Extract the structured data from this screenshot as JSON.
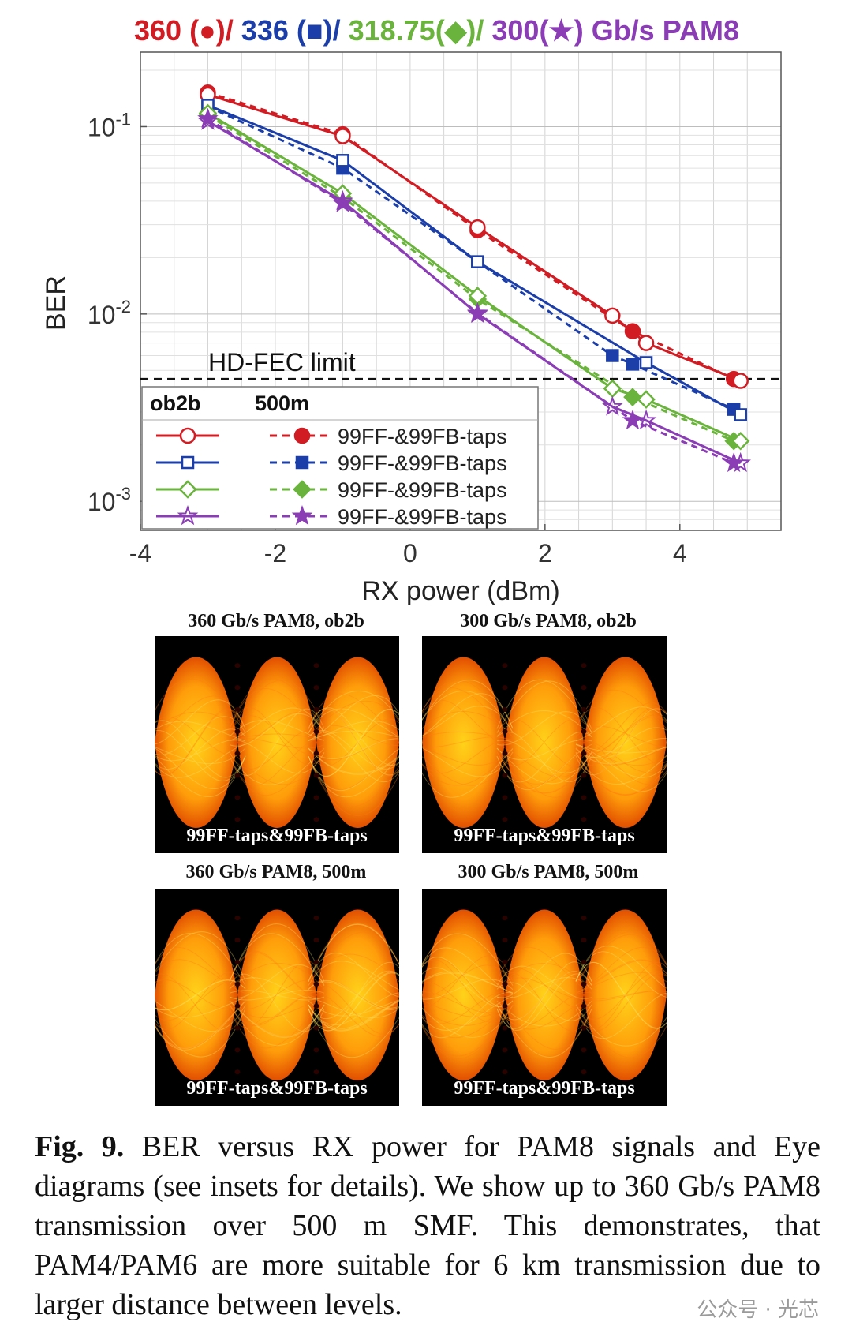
{
  "chart_data": {
    "type": "line",
    "title_parts": [
      {
        "text": "360 (●)/ ",
        "color": "#d01c22"
      },
      {
        "text": "336 (■)/ ",
        "color": "#1b3ea8"
      },
      {
        "text": "318.75(◆)/ ",
        "color": "#6ab33c"
      },
      {
        "text": "300(★) Gb/s PAM8",
        "color": "#8a3db4"
      }
    ],
    "xlabel": "RX power (dBm)",
    "ylabel": "BER",
    "xlim": [
      -4,
      5.5
    ],
    "xticks": [
      -4,
      -2,
      0,
      2,
      4
    ],
    "ylim": [
      0.0007,
      0.25
    ],
    "yscale": "log",
    "yticks": [
      {
        "value": 0.1,
        "base": "10",
        "exp": "-1"
      },
      {
        "value": 0.01,
        "base": "10",
        "exp": "-2"
      },
      {
        "value": 0.001,
        "base": "10",
        "exp": "-3"
      }
    ],
    "grid": true,
    "threshold": {
      "label": "HD-FEC limit",
      "value": 0.0045
    },
    "legend": {
      "headers": [
        "ob2b",
        "500m"
      ],
      "entries_label": "99FF-&99FB-taps",
      "placement": "lower-left"
    },
    "series": [
      {
        "color": "#d01c22",
        "marker": "circle",
        "ob2b": {
          "x": [
            -3,
            -1,
            1,
            3,
            3.5,
            4.9
          ],
          "y": [
            0.148,
            0.089,
            0.029,
            0.0098,
            0.007,
            0.0044
          ]
        },
        "km500": {
          "x": [
            -3,
            -1,
            1,
            3.3,
            4.8
          ],
          "y": [
            0.152,
            0.091,
            0.028,
            0.0081,
            0.0045
          ]
        }
      },
      {
        "color": "#1b3ea8",
        "marker": "square",
        "ob2b": {
          "x": [
            -3,
            -1,
            1,
            3.5,
            4.9
          ],
          "y": [
            0.13,
            0.066,
            0.019,
            0.0055,
            0.0029
          ]
        },
        "km500": {
          "x": [
            -3,
            -1,
            1,
            3,
            3.3,
            4.8
          ],
          "y": [
            0.128,
            0.06,
            0.019,
            0.006,
            0.0054,
            0.0031
          ]
        }
      },
      {
        "color": "#6ab33c",
        "marker": "diamond",
        "ob2b": {
          "x": [
            -3,
            -1,
            1,
            3,
            3.5,
            4.9
          ],
          "y": [
            0.118,
            0.044,
            0.0125,
            0.004,
            0.0035,
            0.0021
          ]
        },
        "km500": {
          "x": [
            -3,
            -1,
            1,
            3.3,
            4.8
          ],
          "y": [
            0.115,
            0.042,
            0.012,
            0.0036,
            0.0021
          ]
        }
      },
      {
        "color": "#8a3db4",
        "marker": "star",
        "ob2b": {
          "x": [
            -3,
            -1,
            1,
            3,
            3.5,
            4.9
          ],
          "y": [
            0.107,
            0.04,
            0.01,
            0.0032,
            0.0027,
            0.0016
          ]
        },
        "km500": {
          "x": [
            -3,
            -1,
            1,
            3.3,
            4.8
          ],
          "y": [
            0.11,
            0.039,
            0.0101,
            0.0027,
            0.0016
          ]
        }
      }
    ]
  },
  "eye_diagrams": [
    {
      "title": "360 Gb/s PAM8, ob2b",
      "label": "99FF-taps&99FB-taps"
    },
    {
      "title": "300 Gb/s PAM8, ob2b",
      "label": "99FF-taps&99FB-taps"
    },
    {
      "title": "360 Gb/s PAM8, 500m",
      "label": "99FF-taps&99FB-taps"
    },
    {
      "title": "300 Gb/s PAM8, 500m",
      "label": "99FF-taps&99FB-taps"
    }
  ],
  "caption": {
    "lead": "Fig. 9.",
    "text": " BER versus RX power for PAM8 signals and Eye diagrams (see insets for details). We show up to 360 Gb/s PAM8 transmission over 500 m SMF. This demonstrates, that PAM4/PAM6 are more suitable for 6 km transmission due to larger distance between levels."
  },
  "watermark": "公众号 · 光芯"
}
